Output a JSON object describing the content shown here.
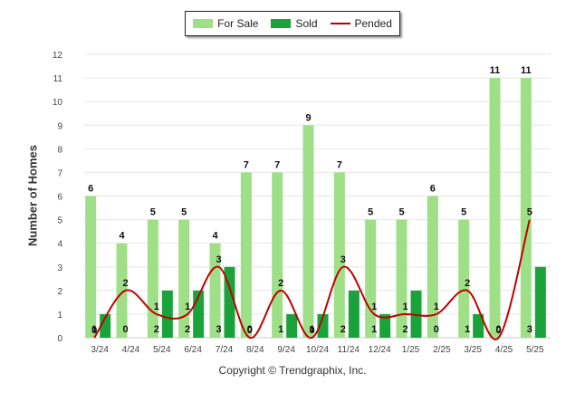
{
  "chart_data": {
    "type": "bar",
    "categories": [
      "3/24",
      "4/24",
      "5/24",
      "6/24",
      "7/24",
      "8/24",
      "9/24",
      "10/24",
      "11/24",
      "12/24",
      "1/25",
      "2/25",
      "3/25",
      "4/25",
      "5/25"
    ],
    "series": [
      {
        "name": "For Sale",
        "type": "bar",
        "color": "#9fdf87",
        "values": [
          6,
          4,
          5,
          5,
          4,
          7,
          7,
          9,
          7,
          5,
          5,
          6,
          5,
          11,
          11
        ]
      },
      {
        "name": "Sold",
        "type": "bar",
        "color": "#1aa33a",
        "values": [
          1,
          0,
          2,
          2,
          3,
          0,
          1,
          1,
          2,
          1,
          2,
          0,
          1,
          0,
          3
        ]
      },
      {
        "name": "Pended",
        "type": "line",
        "color": "#c00000",
        "values": [
          0,
          2,
          1,
          1,
          3,
          0,
          2,
          0,
          3,
          1,
          1,
          1,
          2,
          0,
          5
        ]
      }
    ],
    "ylabel": "Number of Homes",
    "xlabel": "",
    "ylim": [
      0,
      12
    ],
    "yticks": [
      0,
      1,
      2,
      3,
      4,
      5,
      6,
      7,
      8,
      9,
      10,
      11,
      12
    ],
    "grid": true,
    "legend_position": "top-center"
  },
  "footer": "Copyright © Trendgraphix, Inc."
}
